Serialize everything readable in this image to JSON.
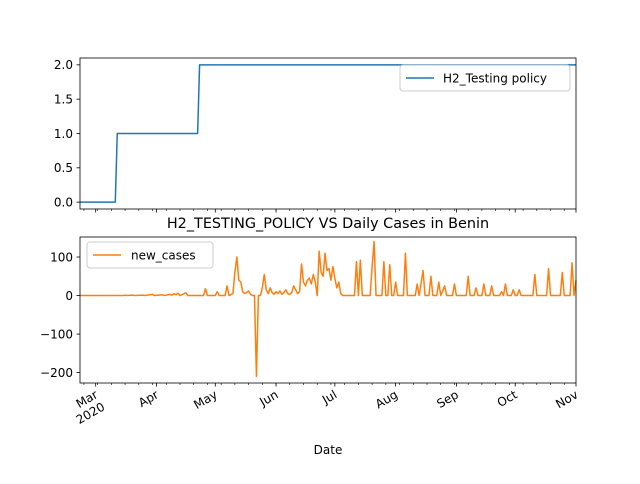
{
  "chart_data": [
    {
      "type": "line",
      "title": "",
      "xlabel": "",
      "ylabel": "",
      "ylim": [
        -0.1,
        2.1
      ],
      "xlim": [
        "2020-02-22",
        "2020-11-01"
      ],
      "yticks": [
        0.0,
        0.5,
        1.0,
        1.5,
        2.0
      ],
      "ytick_labels": [
        "0.0",
        "0.5",
        "1.0",
        "1.5",
        "2.0"
      ],
      "grid": false,
      "legend": "top-right",
      "series": [
        {
          "name": "H2_Testing policy",
          "color": "#1f77b4",
          "points": [
            [
              "2020-02-22",
              0
            ],
            [
              "2020-03-11",
              0
            ],
            [
              "2020-03-12",
              1
            ],
            [
              "2020-04-22",
              1
            ],
            [
              "2020-04-23",
              2
            ],
            [
              "2020-11-01",
              2
            ]
          ]
        }
      ]
    },
    {
      "type": "line",
      "title": "H2_TESTING_POLICY VS Daily Cases in Benin",
      "xlabel": "Date",
      "ylabel": "",
      "ylim": [
        -227,
        152
      ],
      "xlim": [
        "2020-02-22",
        "2020-11-01"
      ],
      "yticks": [
        -200,
        -100,
        0,
        100
      ],
      "ytick_labels": [
        "−200",
        "−100",
        "0",
        "100"
      ],
      "xticks": [
        "2020-03-01",
        "2020-04-01",
        "2020-05-01",
        "2020-06-01",
        "2020-07-01",
        "2020-08-01",
        "2020-09-01",
        "2020-10-01",
        "2020-11-01"
      ],
      "xtick_labels": [
        "Mar\n2020",
        "Apr",
        "May",
        "Jun",
        "Jul",
        "Aug",
        "Sep",
        "Oct",
        "Nov"
      ],
      "grid": false,
      "legend": "top-left",
      "series": [
        {
          "name": "new_cases",
          "color": "#ff7f0e",
          "points": [
            [
              "2020-02-22",
              0
            ],
            [
              "2020-03-15",
              0
            ],
            [
              "2020-03-16",
              1
            ],
            [
              "2020-03-17",
              0
            ],
            [
              "2020-03-20",
              1
            ],
            [
              "2020-03-21",
              0
            ],
            [
              "2020-03-25",
              1
            ],
            [
              "2020-03-26",
              0
            ],
            [
              "2020-03-30",
              3
            ],
            [
              "2020-03-31",
              0
            ],
            [
              "2020-04-04",
              2
            ],
            [
              "2020-04-05",
              0
            ],
            [
              "2020-04-08",
              3
            ],
            [
              "2020-04-09",
              1
            ],
            [
              "2020-04-10",
              5
            ],
            [
              "2020-04-11",
              2
            ],
            [
              "2020-04-12",
              6
            ],
            [
              "2020-04-13",
              0
            ],
            [
              "2020-04-16",
              7
            ],
            [
              "2020-04-17",
              0
            ],
            [
              "2020-04-25",
              0
            ],
            [
              "2020-04-26",
              18
            ],
            [
              "2020-04-27",
              0
            ],
            [
              "2020-05-01",
              0
            ],
            [
              "2020-05-02",
              10
            ],
            [
              "2020-05-03",
              0
            ],
            [
              "2020-05-06",
              0
            ],
            [
              "2020-05-07",
              25
            ],
            [
              "2020-05-08",
              0
            ],
            [
              "2020-05-10",
              5
            ],
            [
              "2020-05-11",
              60
            ],
            [
              "2020-05-12",
              100
            ],
            [
              "2020-05-13",
              40
            ],
            [
              "2020-05-14",
              35
            ],
            [
              "2020-05-15",
              10
            ],
            [
              "2020-05-16",
              5
            ],
            [
              "2020-05-17",
              8
            ],
            [
              "2020-05-18",
              12
            ],
            [
              "2020-05-19",
              3
            ],
            [
              "2020-05-20",
              0
            ],
            [
              "2020-05-21",
              0
            ],
            [
              "2020-05-22",
              -210
            ],
            [
              "2020-05-23",
              0
            ],
            [
              "2020-05-24",
              0
            ],
            [
              "2020-05-25",
              20
            ],
            [
              "2020-05-26",
              55
            ],
            [
              "2020-05-27",
              15
            ],
            [
              "2020-05-28",
              5
            ],
            [
              "2020-05-29",
              20
            ],
            [
              "2020-05-30",
              8
            ],
            [
              "2020-05-31",
              3
            ],
            [
              "2020-06-01",
              10
            ],
            [
              "2020-06-02",
              5
            ],
            [
              "2020-06-03",
              12
            ],
            [
              "2020-06-04",
              3
            ],
            [
              "2020-06-05",
              8
            ],
            [
              "2020-06-06",
              15
            ],
            [
              "2020-06-07",
              5
            ],
            [
              "2020-06-08",
              3
            ],
            [
              "2020-06-09",
              8
            ],
            [
              "2020-06-10",
              25
            ],
            [
              "2020-06-11",
              15
            ],
            [
              "2020-06-12",
              5
            ],
            [
              "2020-06-13",
              10
            ],
            [
              "2020-06-14",
              82
            ],
            [
              "2020-06-15",
              35
            ],
            [
              "2020-06-16",
              25
            ],
            [
              "2020-06-17",
              40
            ],
            [
              "2020-06-18",
              45
            ],
            [
              "2020-06-19",
              30
            ],
            [
              "2020-06-20",
              55
            ],
            [
              "2020-06-21",
              35
            ],
            [
              "2020-06-22",
              0
            ],
            [
              "2020-06-23",
              115
            ],
            [
              "2020-06-24",
              60
            ],
            [
              "2020-06-25",
              50
            ],
            [
              "2020-06-26",
              110
            ],
            [
              "2020-06-27",
              65
            ],
            [
              "2020-06-28",
              70
            ],
            [
              "2020-06-29",
              40
            ],
            [
              "2020-06-30",
              75
            ],
            [
              "2020-07-01",
              45
            ],
            [
              "2020-07-02",
              20
            ],
            [
              "2020-07-03",
              35
            ],
            [
              "2020-07-04",
              5
            ],
            [
              "2020-07-05",
              0
            ],
            [
              "2020-07-11",
              0
            ],
            [
              "2020-07-12",
              88
            ],
            [
              "2020-07-13",
              0
            ],
            [
              "2020-07-14",
              92
            ],
            [
              "2020-07-15",
              0
            ],
            [
              "2020-07-19",
              0
            ],
            [
              "2020-07-20",
              75
            ],
            [
              "2020-07-21",
              140
            ],
            [
              "2020-07-22",
              0
            ],
            [
              "2020-07-25",
              0
            ],
            [
              "2020-07-26",
              88
            ],
            [
              "2020-07-27",
              0
            ],
            [
              "2020-07-28",
              0
            ],
            [
              "2020-07-29",
              80
            ],
            [
              "2020-07-30",
              0
            ],
            [
              "2020-07-31",
              0
            ],
            [
              "2020-08-01",
              35
            ],
            [
              "2020-08-02",
              0
            ],
            [
              "2020-08-05",
              0
            ],
            [
              "2020-08-06",
              110
            ],
            [
              "2020-08-07",
              0
            ],
            [
              "2020-08-11",
              0
            ],
            [
              "2020-08-12",
              30
            ],
            [
              "2020-08-13",
              0
            ],
            [
              "2020-08-15",
              65
            ],
            [
              "2020-08-16",
              0
            ],
            [
              "2020-08-18",
              0
            ],
            [
              "2020-08-19",
              50
            ],
            [
              "2020-08-20",
              0
            ],
            [
              "2020-08-22",
              0
            ],
            [
              "2020-08-23",
              35
            ],
            [
              "2020-08-24",
              0
            ],
            [
              "2020-08-26",
              25
            ],
            [
              "2020-08-27",
              0
            ],
            [
              "2020-08-30",
              0
            ],
            [
              "2020-08-31",
              30
            ],
            [
              "2020-09-01",
              0
            ],
            [
              "2020-09-06",
              0
            ],
            [
              "2020-09-07",
              50
            ],
            [
              "2020-09-08",
              0
            ],
            [
              "2020-09-10",
              0
            ],
            [
              "2020-09-11",
              20
            ],
            [
              "2020-09-12",
              0
            ],
            [
              "2020-09-14",
              0
            ],
            [
              "2020-09-15",
              30
            ],
            [
              "2020-09-16",
              0
            ],
            [
              "2020-09-18",
              0
            ],
            [
              "2020-09-19",
              25
            ],
            [
              "2020-09-20",
              0
            ],
            [
              "2020-09-23",
              0
            ],
            [
              "2020-09-24",
              10
            ],
            [
              "2020-09-25",
              0
            ],
            [
              "2020-09-26",
              30
            ],
            [
              "2020-09-27",
              0
            ],
            [
              "2020-09-29",
              0
            ],
            [
              "2020-09-30",
              15
            ],
            [
              "2020-10-01",
              0
            ],
            [
              "2020-10-02",
              0
            ],
            [
              "2020-10-03",
              15
            ],
            [
              "2020-10-04",
              0
            ],
            [
              "2020-10-10",
              0
            ],
            [
              "2020-10-11",
              55
            ],
            [
              "2020-10-12",
              0
            ],
            [
              "2020-10-17",
              0
            ],
            [
              "2020-10-18",
              70
            ],
            [
              "2020-10-19",
              0
            ],
            [
              "2020-10-24",
              0
            ],
            [
              "2020-10-25",
              60
            ],
            [
              "2020-10-26",
              0
            ],
            [
              "2020-10-29",
              0
            ],
            [
              "2020-10-30",
              85
            ],
            [
              "2020-10-31",
              0
            ],
            [
              "2020-11-01",
              40
            ]
          ]
        }
      ]
    }
  ]
}
